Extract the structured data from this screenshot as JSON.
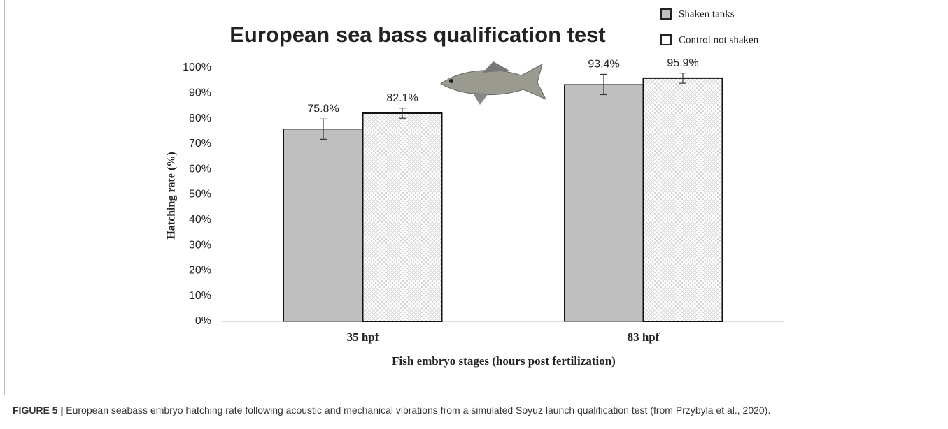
{
  "chart_data": {
    "type": "bar",
    "title": "European sea bass  qualification test",
    "x_label": "Fish embryo stages (hours post fertilization)",
    "y_label": "Hatching rate (%)",
    "categories": [
      "35 hpf",
      "83 hpf"
    ],
    "series": [
      {
        "name": "Shaken tanks",
        "color": "#bfbfbf",
        "hatch": false,
        "values": [
          75.8,
          93.4
        ],
        "value_labels": [
          "75.8%",
          "93.4%"
        ],
        "errors": [
          4,
          4
        ]
      },
      {
        "name": "Control not shaken",
        "color": "#ffffff",
        "hatch": true,
        "values": [
          82.1,
          95.9
        ],
        "value_labels": [
          "82.1%",
          "95.9%"
        ],
        "errors": [
          2,
          2
        ]
      }
    ],
    "ylim": [
      0,
      100
    ],
    "yticks": [
      {
        "value": 0,
        "label": "0%"
      },
      {
        "value": 10,
        "label": "10%"
      },
      {
        "value": 20,
        "label": "20%"
      },
      {
        "value": 30,
        "label": "30%"
      },
      {
        "value": 40,
        "label": "40%"
      },
      {
        "value": 50,
        "label": "50%"
      },
      {
        "value": 60,
        "label": "60%"
      },
      {
        "value": 70,
        "label": "70%"
      },
      {
        "value": 80,
        "label": "80%"
      },
      {
        "value": 90,
        "label": "90%"
      },
      {
        "value": 100,
        "label": "100%"
      }
    ],
    "grid": false
  },
  "caption": {
    "label": "FIGURE 5 |",
    "text": "European seabass embryo hatching rate following acoustic and mechanical vibrations from a simulated Soyuz launch qualification test (from Przybyla et al., 2020)."
  }
}
